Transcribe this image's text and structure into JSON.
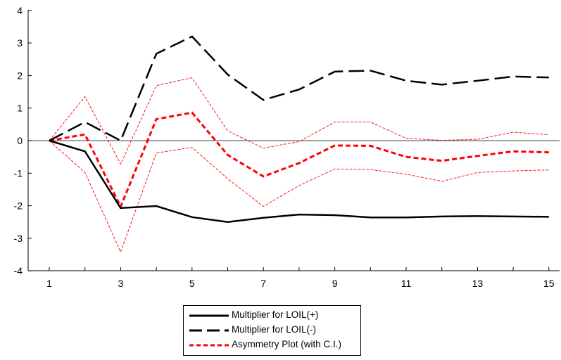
{
  "chart_data": {
    "type": "line",
    "x": [
      1,
      2,
      3,
      4,
      5,
      6,
      7,
      8,
      9,
      10,
      11,
      12,
      13,
      14,
      15
    ],
    "xticks": [
      1,
      3,
      5,
      7,
      9,
      11,
      13,
      15
    ],
    "yticks": [
      -4,
      -3,
      -2,
      -1,
      0,
      1,
      2,
      3,
      4
    ],
    "ylim": [
      -4,
      4
    ],
    "xlim": [
      0.3,
      15.5
    ],
    "zero_line": true,
    "legend_position": "bottom-center",
    "series": [
      {
        "name": "Multiplier for LOIL(+)",
        "style": "solid",
        "color": "#000000",
        "values": [
          0,
          -0.33,
          -2.07,
          -2.01,
          -2.35,
          -2.5,
          -2.37,
          -2.27,
          -2.29,
          -2.36,
          -2.36,
          -2.33,
          -2.32,
          -2.33,
          -2.34
        ]
      },
      {
        "name": "Multiplier for LOIL(-)",
        "style": "longdash",
        "color": "#000000",
        "values": [
          0,
          0.57,
          0,
          2.67,
          3.2,
          2.03,
          1.25,
          1.57,
          2.12,
          2.15,
          1.84,
          1.72,
          1.84,
          1.97,
          1.94
        ]
      },
      {
        "name": "Asymmetry Plot (with C.I.)",
        "style": "shortdash",
        "color": "#ff0000",
        "values": [
          0,
          0.19,
          -2.03,
          0.66,
          0.86,
          -0.44,
          -1.1,
          -0.69,
          -0.15,
          -0.16,
          -0.5,
          -0.62,
          -0.47,
          -0.33,
          -0.36
        ]
      },
      {
        "name": "",
        "role": "upper-ci",
        "style": "thin",
        "color": "#ff0000",
        "values": [
          0,
          1.35,
          -0.72,
          1.69,
          1.93,
          0.3,
          -0.23,
          -0.03,
          0.57,
          0.57,
          0.07,
          0.01,
          0.04,
          0.26,
          0.18
        ]
      },
      {
        "name": "",
        "role": "lower-ci",
        "style": "thin",
        "color": "#ff0000",
        "values": [
          0,
          -0.98,
          -3.42,
          -0.38,
          -0.21,
          -1.17,
          -2.02,
          -1.38,
          -0.87,
          -0.89,
          -1.03,
          -1.25,
          -0.98,
          -0.93,
          -0.9
        ]
      }
    ]
  },
  "legend": {
    "items": [
      {
        "label": "Multiplier for LOIL(+)",
        "style": "solid",
        "color": "#000000"
      },
      {
        "label": "Multiplier for LOIL(-)",
        "style": "longdash",
        "color": "#000000"
      },
      {
        "label": "Asymmetry Plot (with C.I.)",
        "style": "shortdash",
        "color": "#ff0000"
      }
    ]
  }
}
